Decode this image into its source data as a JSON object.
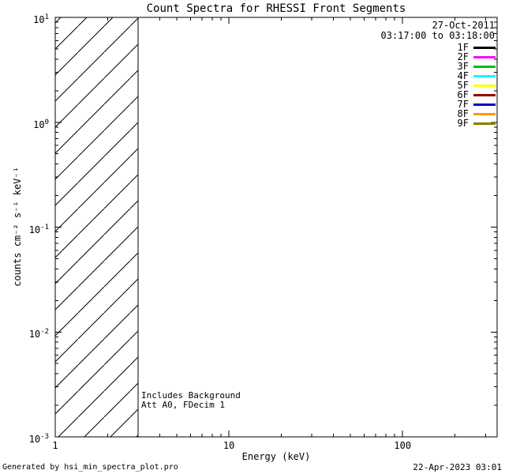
{
  "title": "Count Spectra for RHESSI Front Segments",
  "header": {
    "date": "27-Oct-2011",
    "time_range": "03:17:00 to 03:18:00"
  },
  "legend": [
    {
      "label": "1F",
      "color": "#000000"
    },
    {
      "label": "2F",
      "color": "#ff00ff"
    },
    {
      "label": "3F",
      "color": "#00c000"
    },
    {
      "label": "4F",
      "color": "#00ffff"
    },
    {
      "label": "5F",
      "color": "#ffff00"
    },
    {
      "label": "6F",
      "color": "#990000"
    },
    {
      "label": "7F",
      "color": "#0000cc"
    },
    {
      "label": "8F",
      "color": "#ff9900"
    },
    {
      "label": "9F",
      "color": "#808000"
    }
  ],
  "annotations": [
    "Includes Background",
    "Att A0, FDecim 1"
  ],
  "footer": {
    "left": "Generated by hsi_min_spectra_plot.pro",
    "right": "22-Apr-2023 03:01"
  },
  "chart_data": {
    "type": "line",
    "title": "Count Spectra for RHESSI Front Segments",
    "xlabel": "Energy (keV)",
    "ylabel": "counts cm⁻² s⁻¹ keV⁻¹",
    "x_scale": "log",
    "y_scale": "log",
    "xlim": [
      1,
      350
    ],
    "ylim": [
      0.001,
      10
    ],
    "x_ticks": [
      1,
      10,
      100
    ],
    "x_tick_labels": [
      "1",
      "10",
      "100"
    ],
    "y_ticks": [
      0.001,
      0.01,
      0.1,
      1,
      10
    ],
    "y_tick_base": "10",
    "y_tick_exponents": [
      -3,
      -2,
      -1,
      0,
      1
    ],
    "grid": false,
    "legend_position": "upper right",
    "series": [],
    "hatched_band": {
      "x_range": [
        1,
        3
      ],
      "style": "diagonal-hatch",
      "spans_full_y_range": true
    }
  }
}
